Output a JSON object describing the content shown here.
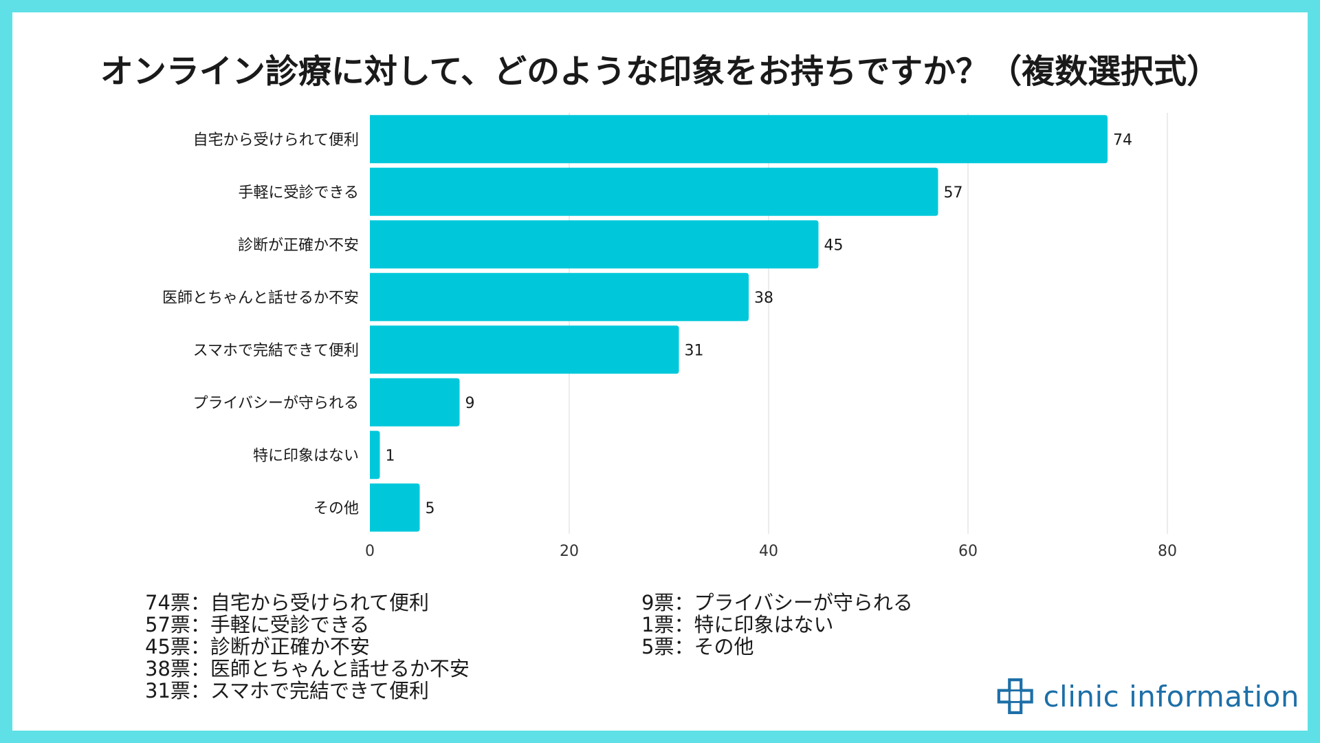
{
  "title": "オンライン診療に対して、どのような印象をお持ちですか？（複数選択式）",
  "colors": {
    "frame": "#5ee0e6",
    "bar": "#00c8da",
    "grid": "#e6e6e6",
    "text": "#1a1a1a",
    "logo": "#1d6fa8"
  },
  "chart_data": {
    "type": "bar",
    "orientation": "horizontal",
    "categories": [
      "自宅から受けられて便利",
      "手軽に受診できる",
      "診断が正確か不安",
      "医師とちゃんと話せるか不安",
      "スマホで完結できて便利",
      "プライバシーが守られる",
      "特に印象はない",
      "その他"
    ],
    "values": [
      74,
      57,
      45,
      38,
      31,
      9,
      1,
      5
    ],
    "xlim": [
      0,
      80
    ],
    "xticks": [
      0,
      20,
      40,
      60,
      80
    ],
    "grid": true,
    "xlabel": "",
    "ylabel": ""
  },
  "summary": {
    "left": [
      "74票：自宅から受けられて便利",
      "57票：手軽に受診できる",
      "45票：診断が正確か不安",
      "38票：医師とちゃんと話せるか不安",
      "31票：スマホで完結できて便利"
    ],
    "right": [
      "9票：プライバシーが守られる",
      "1票：特に印象はない",
      "5票：その他"
    ]
  },
  "logo": {
    "text": "clinic information",
    "icon": "medical-cross-icon"
  }
}
